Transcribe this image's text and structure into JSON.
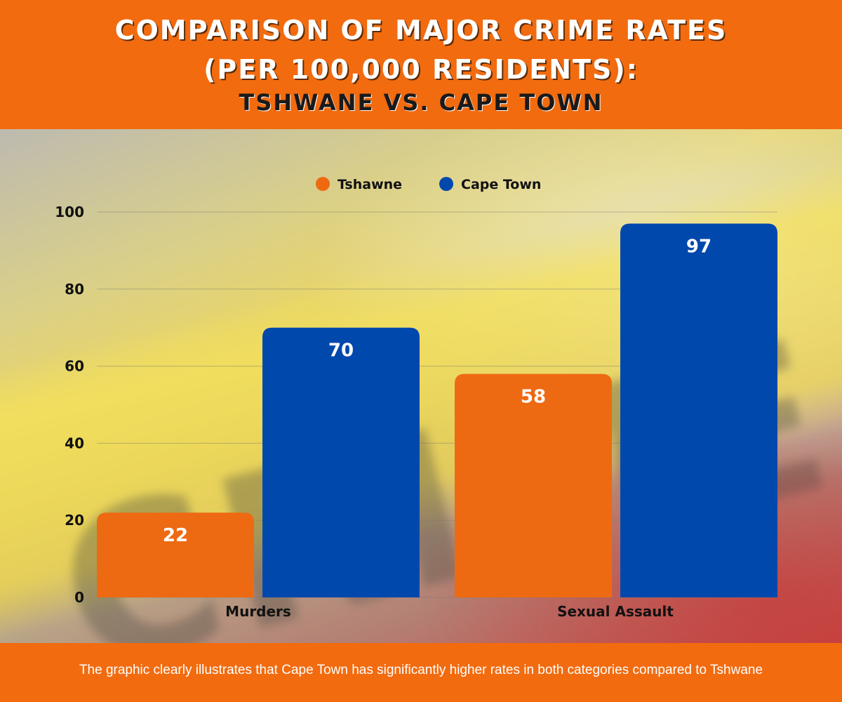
{
  "header": {
    "title_line1": "Comparison of Major Crime Rates",
    "title_line2": "(per 100,000 residents):",
    "title_line3": "Tshwane vs. Cape Town"
  },
  "footer": {
    "caption": "The graphic clearly illustrates that Cape Town has significantly higher rates in both categories compared to Tshwane"
  },
  "colors": {
    "tshwane": "#ee6a12",
    "cape_town": "#0148ad",
    "background_orange": "#f26b0f"
  },
  "chart_data": {
    "type": "bar",
    "title": "Comparison of Major Crime Rates (per 100,000 residents): Tshwane vs. Cape Town",
    "categories": [
      "Murders",
      "Sexual Assault"
    ],
    "series": [
      {
        "name": "Tshawne",
        "values": [
          22,
          58
        ],
        "color": "#ee6a12"
      },
      {
        "name": "Cape Town",
        "values": [
          70,
          97
        ],
        "color": "#0148ad"
      }
    ],
    "ylim": [
      0,
      100
    ],
    "yticks": [
      "0",
      "20",
      "40",
      "60",
      "80",
      "100"
    ],
    "grid": true,
    "legend_position": "top-center",
    "data_labels": true,
    "background_image": "blurred crime scene tape photo"
  }
}
